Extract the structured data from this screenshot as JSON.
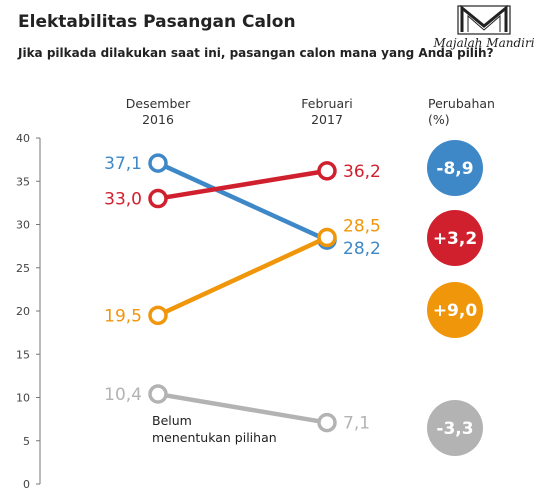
{
  "header": {
    "title": "Elektabilitas Pasangan Calon",
    "subtitle": "Jika pilkada dilakukan saat ini, pasangan calon mana yang Anda pilih?"
  },
  "logo": {
    "text": "Majalah Mandiri"
  },
  "columns": {
    "left": [
      "Desember",
      "2016"
    ],
    "right": [
      "Februari",
      "2017"
    ],
    "change": [
      "Perubahan",
      "(%)"
    ]
  },
  "annotation": [
    "Belum",
    "menentukan pilihan"
  ],
  "chart_data": {
    "type": "line",
    "title": "Elektabilitas Pasangan Calon",
    "categories": [
      "Desember 2016",
      "Februari 2017"
    ],
    "ylim": [
      0,
      40
    ],
    "yticks": [
      0,
      5,
      10,
      15,
      20,
      25,
      30,
      35,
      40
    ],
    "grid": false,
    "series": [
      {
        "values": [
          37.1,
          28.2
        ],
        "labels": [
          "37,1",
          "28,2"
        ],
        "change": "-8,9",
        "color": "#3f88c8"
      },
      {
        "values": [
          33.0,
          36.2
        ],
        "labels": [
          "33,0",
          "36,2"
        ],
        "change": "+3,2",
        "color": "#d0202e"
      },
      {
        "values": [
          19.5,
          28.5
        ],
        "labels": [
          "19,5",
          "28,5"
        ],
        "change": "+9,0",
        "color": "#f0960a"
      },
      {
        "name": "Belum menentukan pilihan",
        "values": [
          10.4,
          7.1
        ],
        "labels": [
          "10,4",
          "7,1"
        ],
        "change": "-3,3",
        "color": "#b3b3b3"
      }
    ]
  }
}
